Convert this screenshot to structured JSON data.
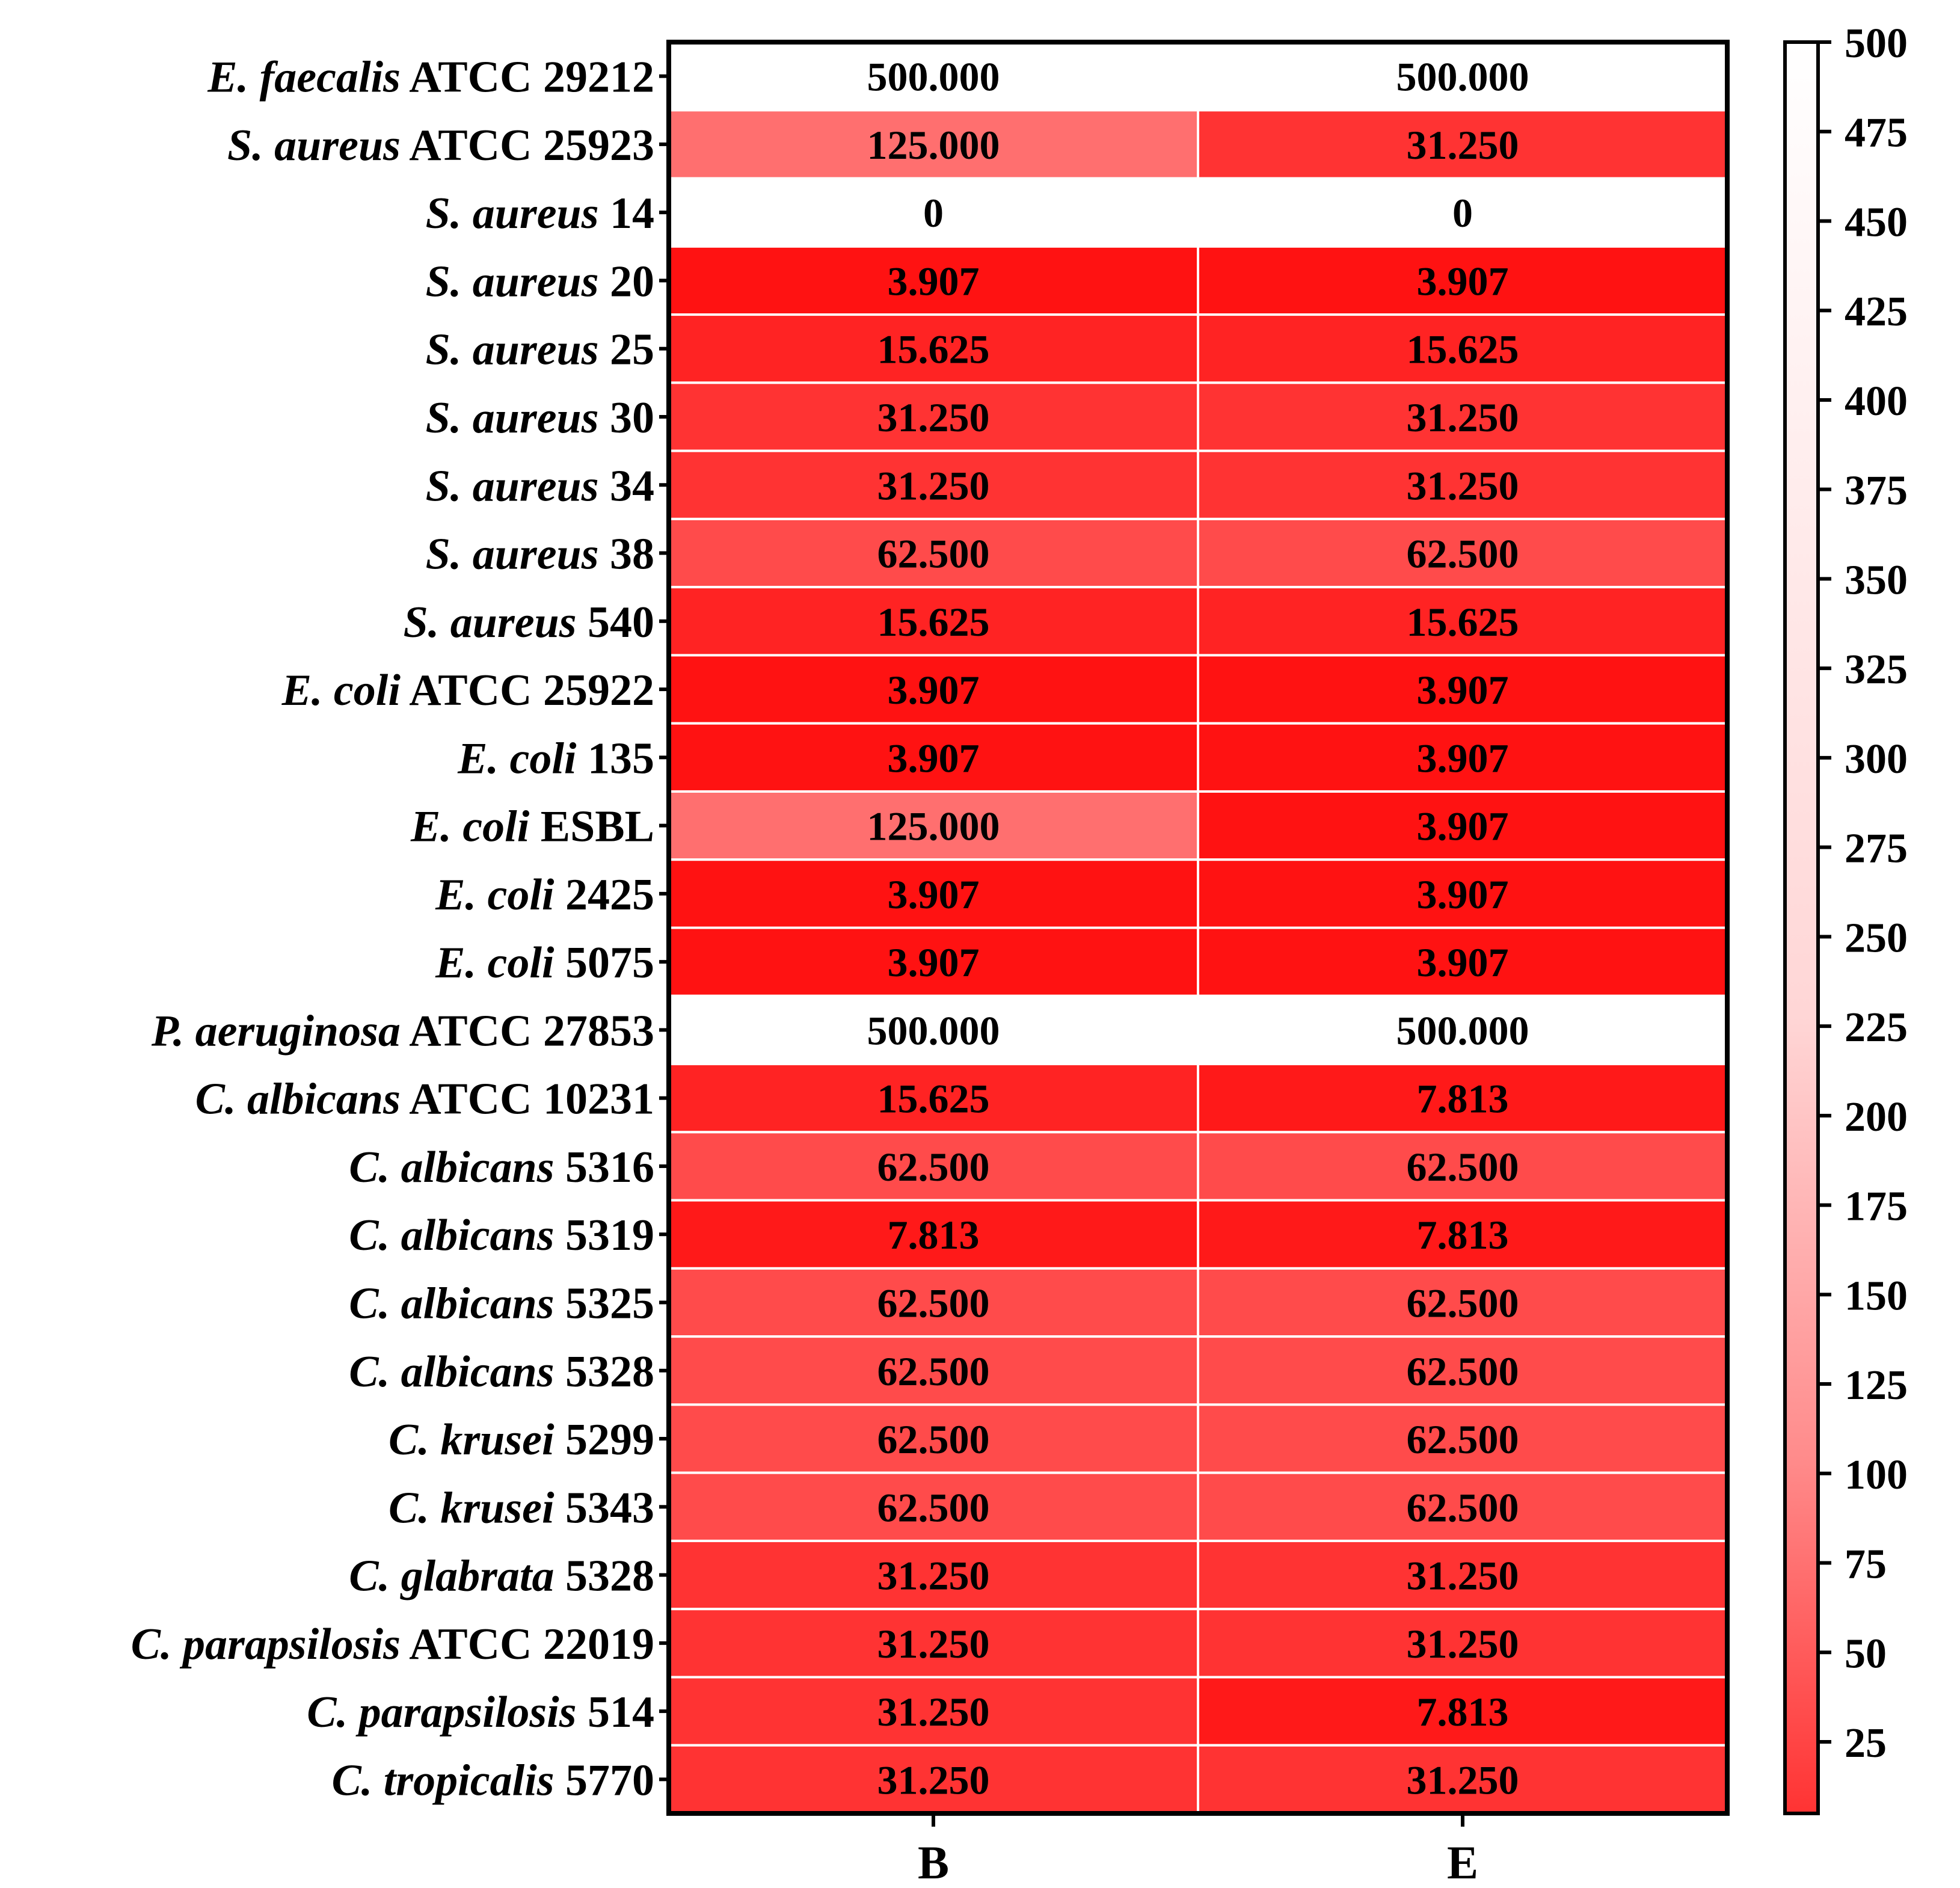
{
  "chart_data": {
    "type": "heatmap",
    "title": "",
    "xlabel": "",
    "ylabel": "",
    "columns": [
      "B",
      "E"
    ],
    "rows": [
      {
        "species": "E. faecalis",
        "strain": "ATCC 29212",
        "values": [
          500.0,
          500.0
        ],
        "labels": [
          "500.000",
          "500.000"
        ]
      },
      {
        "species": "S. aureus",
        "strain": "ATCC 25923",
        "values": [
          125.0,
          31.25
        ],
        "labels": [
          "125.000",
          "31.250"
        ]
      },
      {
        "species": "S. aureus",
        "strain": "14",
        "values": [
          0,
          0
        ],
        "labels": [
          "0",
          "0"
        ]
      },
      {
        "species": "S. aureus",
        "strain": "20",
        "values": [
          3.907,
          3.907
        ],
        "labels": [
          "3.907",
          "3.907"
        ]
      },
      {
        "species": "S. aureus",
        "strain": "25",
        "values": [
          15.625,
          15.625
        ],
        "labels": [
          "15.625",
          "15.625"
        ]
      },
      {
        "species": "S. aureus",
        "strain": "30",
        "values": [
          31.25,
          31.25
        ],
        "labels": [
          "31.250",
          "31.250"
        ]
      },
      {
        "species": "S. aureus",
        "strain": "34",
        "values": [
          31.25,
          31.25
        ],
        "labels": [
          "31.250",
          "31.250"
        ]
      },
      {
        "species": "S. aureus",
        "strain": "38",
        "values": [
          62.5,
          62.5
        ],
        "labels": [
          "62.500",
          "62.500"
        ]
      },
      {
        "species": "S. aureus",
        "strain": "540",
        "values": [
          15.625,
          15.625
        ],
        "labels": [
          "15.625",
          "15.625"
        ]
      },
      {
        "species": "E. coli",
        "strain": "ATCC 25922",
        "values": [
          3.907,
          3.907
        ],
        "labels": [
          "3.907",
          "3.907"
        ]
      },
      {
        "species": "E. coli",
        "strain": "135",
        "values": [
          3.907,
          3.907
        ],
        "labels": [
          "3.907",
          "3.907"
        ]
      },
      {
        "species": "E. coli",
        "strain": "ESBL",
        "values": [
          125.0,
          3.907
        ],
        "labels": [
          "125.000",
          "3.907"
        ]
      },
      {
        "species": "E. coli",
        "strain": "2425",
        "values": [
          3.907,
          3.907
        ],
        "labels": [
          "3.907",
          "3.907"
        ]
      },
      {
        "species": "E. coli",
        "strain": "5075",
        "values": [
          3.907,
          3.907
        ],
        "labels": [
          "3.907",
          "3.907"
        ]
      },
      {
        "species": "P. aeruginosa",
        "strain": "ATCC 27853",
        "values": [
          500.0,
          500.0
        ],
        "labels": [
          "500.000",
          "500.000"
        ]
      },
      {
        "species": "C. albicans",
        "strain": "ATCC 10231",
        "values": [
          15.625,
          7.813
        ],
        "labels": [
          "15.625",
          "7.813"
        ]
      },
      {
        "species": "C. albicans",
        "strain": "5316",
        "values": [
          62.5,
          62.5
        ],
        "labels": [
          "62.500",
          "62.500"
        ]
      },
      {
        "species": "C. albicans",
        "strain": "5319",
        "values": [
          7.813,
          7.813
        ],
        "labels": [
          "7.813",
          "7.813"
        ]
      },
      {
        "species": "C. albicans",
        "strain": "5325",
        "values": [
          62.5,
          62.5
        ],
        "labels": [
          "62.500",
          "62.500"
        ]
      },
      {
        "species": "C. albicans",
        "strain": "5328",
        "values": [
          62.5,
          62.5
        ],
        "labels": [
          "62.500",
          "62.500"
        ]
      },
      {
        "species": "C. krusei",
        "strain": "5299",
        "values": [
          62.5,
          62.5
        ],
        "labels": [
          "62.500",
          "62.500"
        ]
      },
      {
        "species": "C. krusei",
        "strain": "5343",
        "values": [
          62.5,
          62.5
        ],
        "labels": [
          "62.500",
          "62.500"
        ]
      },
      {
        "species": "C. glabrata",
        "strain": "5328",
        "values": [
          31.25,
          31.25
        ],
        "labels": [
          "31.250",
          "31.250"
        ]
      },
      {
        "species": "C. parapsilosis",
        "strain": "ATCC 22019",
        "values": [
          31.25,
          31.25
        ],
        "labels": [
          "31.250",
          "31.250"
        ]
      },
      {
        "species": "C. parapsilosis",
        "strain": "514",
        "values": [
          31.25,
          7.813
        ],
        "labels": [
          "31.250",
          "7.813"
        ]
      },
      {
        "species": "C. tropicalis",
        "strain": "5770",
        "values": [
          31.25,
          31.25
        ],
        "labels": [
          "31.250",
          "31.250"
        ]
      }
    ],
    "colorbar": {
      "range": [
        0,
        500
      ],
      "ticks": [
        25,
        50,
        75,
        100,
        125,
        150,
        175,
        200,
        225,
        250,
        275,
        300,
        325,
        350,
        375,
        400,
        425,
        450,
        475,
        500
      ],
      "color_low": "#ff0000",
      "color_high": "#ffffff",
      "special_zero_color": "#ffffff"
    }
  }
}
